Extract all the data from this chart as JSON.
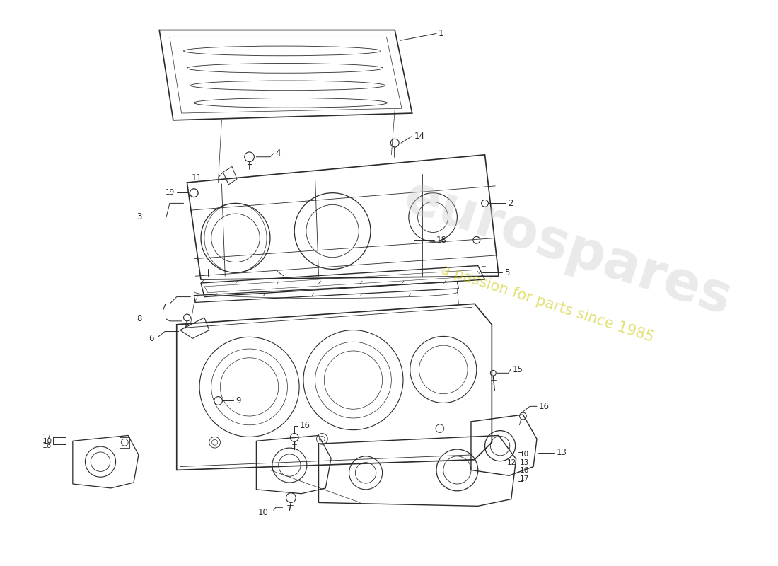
{
  "bg_color": "#ffffff",
  "line_color": "#2a2a2a",
  "lw_main": 1.0,
  "lw_detail": 0.6,
  "lw_label": 0.7,
  "fs_label": 8.5,
  "watermark1": "eurospares",
  "watermark2": "a passion for parts since 1985",
  "wm1_color": "#c8c8c8",
  "wm2_color": "#c8c800",
  "wm1_alpha": 0.38,
  "wm2_alpha": 0.55,
  "wm1_size": 55,
  "wm2_size": 15,
  "wm_rotation": -18
}
